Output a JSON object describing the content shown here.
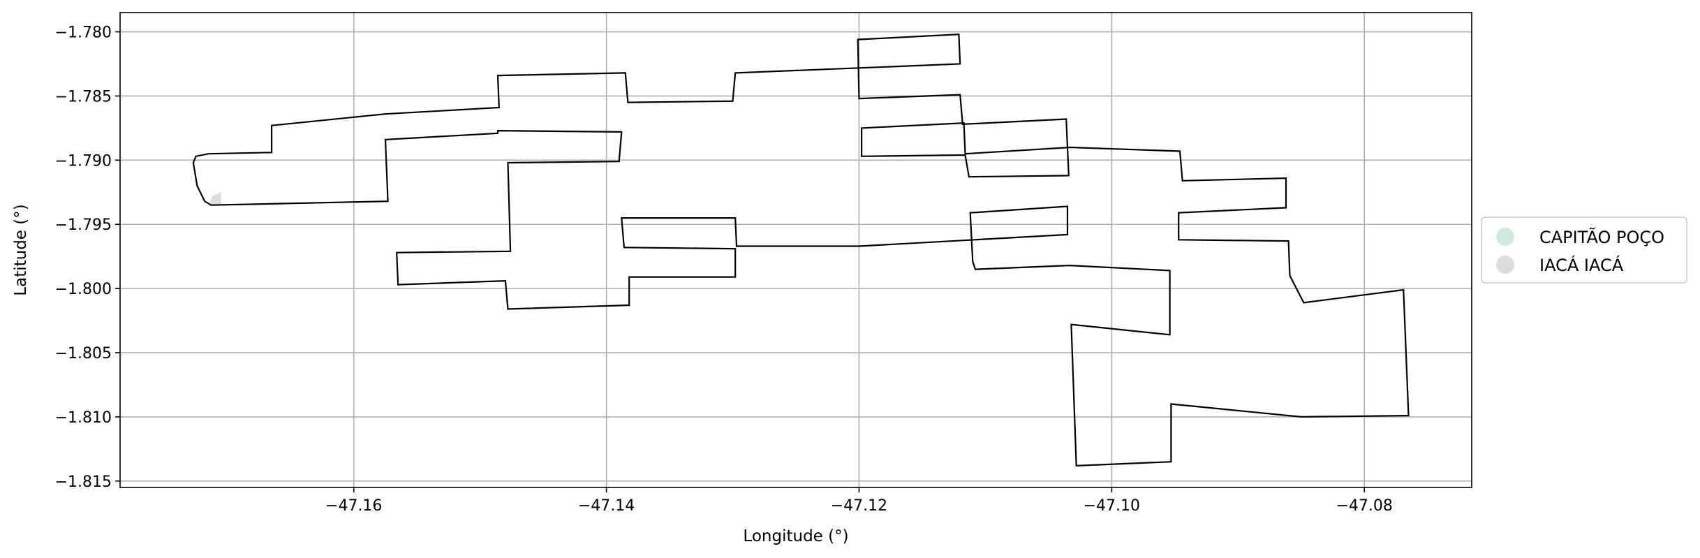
{
  "chart_data": {
    "type": "map",
    "xlabel": "Longitude (°)",
    "ylabel": "Latitude (°)",
    "xlim": [
      -47.1785,
      -47.0715
    ],
    "ylim": [
      -1.8155,
      -1.7785
    ],
    "grid": true,
    "legend_placement": "right",
    "x_ticks": [
      {
        "value": -47.16,
        "label": "−47.16"
      },
      {
        "value": -47.14,
        "label": "−47.14"
      },
      {
        "value": -47.12,
        "label": "−47.12"
      },
      {
        "value": -47.1,
        "label": "−47.10"
      },
      {
        "value": -47.08,
        "label": "−47.08"
      }
    ],
    "y_ticks": [
      {
        "value": -1.78,
        "label": "−1.780"
      },
      {
        "value": -1.785,
        "label": "−1.785"
      },
      {
        "value": -1.79,
        "label": "−1.790"
      },
      {
        "value": -1.795,
        "label": "−1.795"
      },
      {
        "value": -1.8,
        "label": "−1.800"
      },
      {
        "value": -1.805,
        "label": "−1.805"
      },
      {
        "value": -1.81,
        "label": "−1.810"
      },
      {
        "value": -1.815,
        "label": "−1.815"
      }
    ],
    "legend": [
      {
        "label": "CAPITÃO POÇO",
        "color": "#cdeadd"
      },
      {
        "label": "IACÁ IACÁ",
        "color": "#dcdcdc"
      }
    ],
    "shaded_region": {
      "color": "#dcdcdc",
      "points": [
        [
          -47.1705,
          -1.7925
        ],
        [
          -47.1705,
          -1.7935
        ],
        [
          -47.1715,
          -1.7935
        ],
        [
          -47.1712,
          -1.7928
        ]
      ]
    },
    "boundary": [
      [
        -47.1718,
        -1.7932
      ],
      [
        -47.1713,
        -1.7935
      ],
      [
        -47.1573,
        -1.7932
      ],
      [
        -47.1575,
        -1.7884
      ],
      [
        -47.1486,
        -1.7879
      ],
      [
        -47.1486,
        -1.7877
      ],
      [
        -47.1388,
        -1.7878
      ],
      [
        -47.139,
        -1.7901
      ],
      [
        -47.1478,
        -1.7902
      ],
      [
        -47.1476,
        -1.7971
      ],
      [
        -47.1566,
        -1.7972
      ],
      [
        -47.1565,
        -1.7997
      ],
      [
        -47.148,
        -1.7994
      ],
      [
        -47.1478,
        -1.8016
      ],
      [
        -47.1382,
        -1.8013
      ],
      [
        -47.1382,
        -1.7991
      ],
      [
        -47.1298,
        -1.7991
      ],
      [
        -47.1298,
        -1.7969
      ],
      [
        -47.1386,
        -1.7968
      ],
      [
        -47.1388,
        -1.7945
      ],
      [
        -47.1298,
        -1.7945
      ],
      [
        -47.1297,
        -1.7967
      ],
      [
        -47.12,
        -1.7967
      ],
      [
        -47.1035,
        -1.7958
      ],
      [
        -47.1035,
        -1.7936
      ],
      [
        -47.1112,
        -1.7941
      ],
      [
        -47.111,
        -1.7979
      ],
      [
        -47.1108,
        -1.7985
      ],
      [
        -47.1033,
        -1.7982
      ],
      [
        -47.0954,
        -1.7986
      ],
      [
        -47.0954,
        -1.8036
      ],
      [
        -47.1032,
        -1.8028
      ],
      [
        -47.1028,
        -1.8138
      ],
      [
        -47.0953,
        -1.8135
      ],
      [
        -47.0953,
        -1.809
      ],
      [
        -47.085,
        -1.81
      ],
      [
        -47.0765,
        -1.8099
      ],
      [
        -47.0769,
        -1.8001
      ],
      [
        -47.0848,
        -1.8011
      ],
      [
        -47.0859,
        -1.799
      ],
      [
        -47.086,
        -1.7963
      ],
      [
        -47.0947,
        -1.7962
      ],
      [
        -47.0947,
        -1.7941
      ],
      [
        -47.0862,
        -1.7937
      ],
      [
        -47.0862,
        -1.7914
      ],
      [
        -47.0944,
        -1.7916
      ],
      [
        -47.0946,
        -1.7893
      ],
      [
        -47.1033,
        -1.789
      ],
      [
        -47.1116,
        -1.7895
      ],
      [
        -47.1117,
        -1.7871
      ],
      [
        -47.1198,
        -1.7875
      ],
      [
        -47.1198,
        -1.7897
      ],
      [
        -47.1116,
        -1.7896
      ],
      [
        -47.1113,
        -1.7913
      ],
      [
        -47.1034,
        -1.7912
      ],
      [
        -47.1036,
        -1.7868
      ],
      [
        -47.1118,
        -1.7872
      ],
      [
        -47.112,
        -1.7849
      ],
      [
        -47.12,
        -1.7852
      ],
      [
        -47.1201,
        -1.7806
      ],
      [
        -47.1121,
        -1.7802
      ],
      [
        -47.112,
        -1.7825
      ],
      [
        -47.1298,
        -1.7832
      ],
      [
        -47.13,
        -1.7854
      ],
      [
        -47.1383,
        -1.7855
      ],
      [
        -47.1385,
        -1.7832
      ],
      [
        -47.1486,
        -1.7834
      ],
      [
        -47.1485,
        -1.7859
      ],
      [
        -47.1575,
        -1.7864
      ],
      [
        -47.1665,
        -1.7873
      ],
      [
        -47.1665,
        -1.7894
      ],
      [
        -47.1715,
        -1.7895
      ],
      [
        -47.1725,
        -1.7897
      ],
      [
        -47.1727,
        -1.7902
      ],
      [
        -47.1724,
        -1.792
      ],
      [
        -47.1718,
        -1.7932
      ]
    ]
  }
}
